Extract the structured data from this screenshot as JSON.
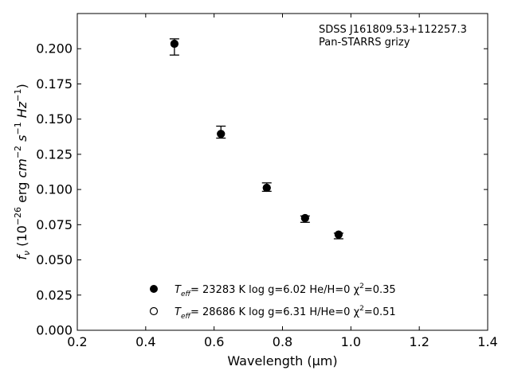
{
  "chart_data": {
    "type": "scatter",
    "annotation": {
      "line1": "SDSS J161809.53+112257.3",
      "line2": "Pan-STARRS grizy"
    },
    "xlabel": "Wavelength (μm)",
    "ylabel": "f_ν (10^-26 erg cm^-2 s^-1 Hz^-1)",
    "xlim": [
      0.2,
      1.4
    ],
    "ylim": [
      0.0,
      0.225
    ],
    "xticks": [
      "0.2",
      "0.4",
      "0.6",
      "0.8",
      "1.0",
      "1.2",
      "1.4"
    ],
    "yticks": [
      "0.000",
      "0.025",
      "0.050",
      "0.075",
      "0.100",
      "0.125",
      "0.150",
      "0.175",
      "0.200"
    ],
    "grid": false,
    "series": [
      {
        "marker": "filled-circle",
        "x": [
          0.484,
          0.62,
          0.754,
          0.866,
          0.964
        ],
        "y": [
          0.2035,
          0.1395,
          0.1012,
          0.0797,
          0.068
        ],
        "yerr_low": [
          0.008,
          0.003,
          0.0025,
          0.003,
          0.003
        ],
        "yerr_high": [
          0.0035,
          0.0055,
          0.0035,
          0.0015,
          0.001
        ]
      },
      {
        "marker": "open-circle",
        "x": [
          0.484,
          0.62,
          0.754,
          0.866,
          0.964
        ],
        "y": [
          0.2035,
          0.1395,
          0.1012,
          0.0797,
          0.068
        ]
      }
    ],
    "legend": {
      "placement": "bottom-center",
      "entries": [
        {
          "marker": "filled-circle",
          "label_teff": "T",
          "label_teff_sub": "eff",
          "label_rest": "= 23283 K  log g=6.02  He/H=0  χ",
          "label_chi_sup": "2",
          "label_chi_val": "=0.35"
        },
        {
          "marker": "open-circle",
          "label_teff": "T",
          "label_teff_sub": "eff",
          "label_rest": "= 28686 K  log g=6.31  H/He=0  χ",
          "label_chi_sup": "2",
          "label_chi_val": "=0.51"
        }
      ]
    }
  }
}
